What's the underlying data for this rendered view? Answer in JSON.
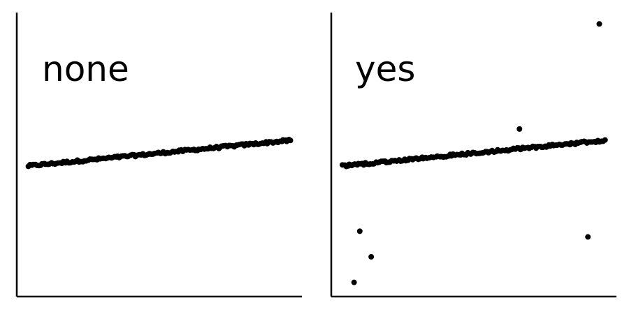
{
  "chart_data": [
    {
      "type": "scatter",
      "panel_label": "none",
      "xlim": [
        0,
        1
      ],
      "ylim": [
        0,
        1
      ],
      "grid": false,
      "point_color": "#000000",
      "trend": {
        "x_start": 0.04,
        "y_start": 0.46,
        "x_end": 0.96,
        "y_end": 0.55,
        "n_points": 150,
        "noise": 0.004
      },
      "outliers": []
    },
    {
      "type": "scatter",
      "panel_label": "yes",
      "xlim": [
        0,
        1
      ],
      "ylim": [
        0,
        1
      ],
      "grid": false,
      "point_color": "#000000",
      "trend": {
        "x_start": 0.04,
        "y_start": 0.46,
        "x_end": 0.96,
        "y_end": 0.55,
        "n_points": 150,
        "noise": 0.004
      },
      "outliers": [
        {
          "x": 0.94,
          "y": 0.96
        },
        {
          "x": 0.66,
          "y": 0.59
        },
        {
          "x": 0.1,
          "y": 0.23
        },
        {
          "x": 0.14,
          "y": 0.14
        },
        {
          "x": 0.08,
          "y": 0.05
        },
        {
          "x": 0.9,
          "y": 0.21
        }
      ]
    }
  ]
}
